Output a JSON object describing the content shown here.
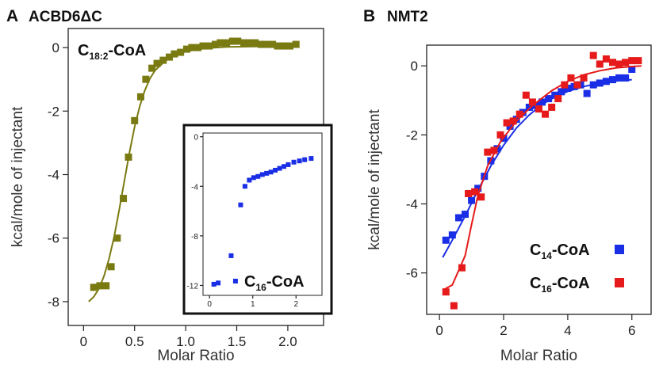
{
  "chart_data": [
    {
      "panel": "A",
      "title": "ACBD6ΔC",
      "type": "scatter",
      "xlabel": "Molar Ratio",
      "ylabel": "kcal/mole of injectant",
      "xlim": [
        -0.15,
        2.35
      ],
      "ylim": [
        -8.75,
        0.6
      ],
      "xticks": [
        0,
        0.5,
        1.0,
        1.5,
        2.0
      ],
      "xtick_labels": [
        "0",
        "0.5",
        "1.0",
        "1.5",
        "2.0"
      ],
      "yticks": [
        0,
        -2,
        -4,
        -6,
        -8
      ],
      "ytick_labels": [
        "0",
        "-2",
        "-4",
        "-6",
        "-8"
      ],
      "annotation": {
        "main": "C",
        "sub": "18:2",
        "rest": "-CoA"
      },
      "series": [
        {
          "color": "#7a7a12",
          "points": [
            [
              0.1,
              -7.55
            ],
            [
              0.16,
              -7.5
            ],
            [
              0.22,
              -7.5
            ],
            [
              0.27,
              -6.9
            ],
            [
              0.33,
              -6.0
            ],
            [
              0.39,
              -4.75
            ],
            [
              0.44,
              -3.45
            ],
            [
              0.5,
              -2.3
            ],
            [
              0.56,
              -1.55
            ],
            [
              0.61,
              -1.0
            ],
            [
              0.67,
              -0.65
            ],
            [
              0.72,
              -0.5
            ],
            [
              0.78,
              -0.4
            ],
            [
              0.84,
              -0.3
            ],
            [
              0.89,
              -0.2
            ],
            [
              0.95,
              -0.15
            ],
            [
              1.01,
              -0.05
            ],
            [
              1.06,
              0.0
            ],
            [
              1.12,
              0.0
            ],
            [
              1.17,
              0.05
            ],
            [
              1.23,
              0.05
            ],
            [
              1.29,
              0.1
            ],
            [
              1.34,
              0.15
            ],
            [
              1.4,
              0.15
            ],
            [
              1.46,
              0.2
            ],
            [
              1.51,
              0.2
            ],
            [
              1.57,
              0.15
            ],
            [
              1.62,
              0.15
            ],
            [
              1.68,
              0.15
            ],
            [
              1.74,
              0.1
            ],
            [
              1.79,
              0.1
            ],
            [
              1.85,
              0.1
            ],
            [
              1.9,
              0.05
            ],
            [
              1.96,
              0.05
            ],
            [
              2.02,
              0.05
            ],
            [
              2.08,
              0.1
            ]
          ],
          "fit": [
            [
              0.05,
              -8.0
            ],
            [
              0.1,
              -7.85
            ],
            [
              0.15,
              -7.6
            ],
            [
              0.2,
              -7.2
            ],
            [
              0.25,
              -6.65
            ],
            [
              0.3,
              -5.95
            ],
            [
              0.35,
              -5.1
            ],
            [
              0.4,
              -4.2
            ],
            [
              0.45,
              -3.3
            ],
            [
              0.5,
              -2.5
            ],
            [
              0.55,
              -1.85
            ],
            [
              0.6,
              -1.35
            ],
            [
              0.65,
              -0.98
            ],
            [
              0.7,
              -0.72
            ],
            [
              0.8,
              -0.42
            ],
            [
              0.9,
              -0.24
            ],
            [
              1.0,
              -0.12
            ],
            [
              1.2,
              -0.02
            ],
            [
              1.4,
              0.02
            ],
            [
              1.6,
              0.03
            ],
            [
              1.8,
              0.04
            ],
            [
              2.1,
              0.05
            ]
          ]
        }
      ],
      "inset": {
        "xlim": [
          -0.15,
          2.6
        ],
        "ylim": [
          -12.8,
          0.3
        ],
        "xticks": [
          0,
          1,
          2
        ],
        "xtick_labels": [
          "0",
          "1",
          "2"
        ],
        "yticks": [
          0,
          -4,
          -8,
          -12
        ],
        "ytick_labels": [
          "0",
          "-4",
          "-8",
          "-12"
        ],
        "annotation": {
          "main": "C",
          "sub": "16",
          "rest": "-CoA"
        },
        "color": "#1a2ee6",
        "points": [
          [
            0.1,
            -11.9
          ],
          [
            0.2,
            -11.8
          ],
          [
            0.5,
            -9.6
          ],
          [
            0.6,
            -11.65
          ],
          [
            0.72,
            -5.5
          ],
          [
            0.82,
            -4.0
          ],
          [
            0.92,
            -3.5
          ],
          [
            1.02,
            -3.3
          ],
          [
            1.12,
            -3.2
          ],
          [
            1.22,
            -3.05
          ],
          [
            1.32,
            -2.95
          ],
          [
            1.42,
            -2.85
          ],
          [
            1.52,
            -2.7
          ],
          [
            1.62,
            -2.55
          ],
          [
            1.72,
            -2.4
          ],
          [
            1.82,
            -2.25
          ],
          [
            1.95,
            -2.05
          ],
          [
            2.08,
            -1.95
          ],
          [
            2.2,
            -1.85
          ],
          [
            2.35,
            -1.75
          ]
        ]
      }
    },
    {
      "panel": "B",
      "title": "NMT2",
      "type": "scatter",
      "xlabel": "Molar Ratio",
      "ylabel": "kcal/mole of injectant",
      "xlim": [
        -0.4,
        6.6
      ],
      "ylim": [
        -7.2,
        0.6
      ],
      "xticks": [
        0,
        2,
        4,
        6
      ],
      "xtick_labels": [
        "0",
        "2",
        "4",
        "6"
      ],
      "yticks": [
        0,
        -2,
        -4,
        -6
      ],
      "ytick_labels": [
        "0",
        "-2",
        "-4",
        "-6"
      ],
      "series": [
        {
          "label": {
            "main": "C",
            "sub": "14",
            "rest": "-CoA"
          },
          "color": "#1a2ee6",
          "points": [
            [
              0.2,
              -5.05
            ],
            [
              0.4,
              -4.9
            ],
            [
              0.6,
              -4.4
            ],
            [
              0.8,
              -4.3
            ],
            [
              1.0,
              -3.9
            ],
            [
              1.2,
              -3.55
            ],
            [
              1.4,
              -3.2
            ],
            [
              1.6,
              -2.75
            ],
            [
              1.8,
              -2.4
            ],
            [
              2.0,
              -2.1
            ],
            [
              2.2,
              -1.75
            ],
            [
              2.4,
              -1.55
            ],
            [
              2.6,
              -1.35
            ],
            [
              2.8,
              -1.2
            ],
            [
              3.0,
              -1.15
            ],
            [
              3.2,
              -1.05
            ],
            [
              3.4,
              -0.95
            ],
            [
              3.6,
              -0.85
            ],
            [
              3.8,
              -0.75
            ],
            [
              4.0,
              -0.65
            ],
            [
              4.2,
              -0.6
            ],
            [
              4.4,
              -0.55
            ],
            [
              4.6,
              -0.8
            ],
            [
              4.8,
              -0.55
            ],
            [
              5.0,
              -0.5
            ],
            [
              5.2,
              -0.45
            ],
            [
              5.4,
              -0.4
            ],
            [
              5.6,
              -0.35
            ],
            [
              5.8,
              -0.35
            ],
            [
              6.0,
              -0.1
            ]
          ],
          "fit": [
            [
              0.1,
              -5.55
            ],
            [
              0.4,
              -5.05
            ],
            [
              0.8,
              -4.35
            ],
            [
              1.2,
              -3.6
            ],
            [
              1.6,
              -2.9
            ],
            [
              2.0,
              -2.3
            ],
            [
              2.4,
              -1.8
            ],
            [
              2.8,
              -1.42
            ],
            [
              3.2,
              -1.12
            ],
            [
              3.6,
              -0.9
            ],
            [
              4.0,
              -0.74
            ],
            [
              4.5,
              -0.6
            ],
            [
              5.0,
              -0.5
            ],
            [
              5.5,
              -0.44
            ],
            [
              6.0,
              -0.4
            ]
          ]
        },
        {
          "label": {
            "main": "C",
            "sub": "16",
            "rest": "-CoA"
          },
          "color": "#e61a1a",
          "points": [
            [
              0.2,
              -6.55
            ],
            [
              0.45,
              -6.95
            ],
            [
              0.7,
              -5.85
            ],
            [
              0.9,
              -3.7
            ],
            [
              1.1,
              -3.65
            ],
            [
              1.3,
              -3.8
            ],
            [
              1.5,
              -2.5
            ],
            [
              1.7,
              -2.45
            ],
            [
              1.9,
              -2.0
            ],
            [
              2.1,
              -1.65
            ],
            [
              2.3,
              -1.6
            ],
            [
              2.5,
              -1.4
            ],
            [
              2.7,
              -0.85
            ],
            [
              2.9,
              -1.05
            ],
            [
              3.1,
              -1.25
            ],
            [
              3.3,
              -1.4
            ],
            [
              3.5,
              -1.2
            ],
            [
              3.7,
              -0.95
            ],
            [
              3.9,
              -0.55
            ],
            [
              4.1,
              -0.35
            ],
            [
              4.3,
              -0.55
            ],
            [
              4.5,
              -0.35
            ],
            [
              4.8,
              0.3
            ],
            [
              5.0,
              0.05
            ],
            [
              5.2,
              0.2
            ],
            [
              5.4,
              0.1
            ],
            [
              5.6,
              0.05
            ],
            [
              5.8,
              0.1
            ],
            [
              6.0,
              0.15
            ],
            [
              6.2,
              0.15
            ]
          ],
          "fit": [
            [
              0.1,
              -6.5
            ],
            [
              0.4,
              -6.35
            ],
            [
              0.8,
              -5.5
            ],
            [
              1.0,
              -4.6
            ],
            [
              1.2,
              -3.75
            ],
            [
              1.5,
              -2.9
            ],
            [
              1.9,
              -2.2
            ],
            [
              2.4,
              -1.6
            ],
            [
              2.9,
              -1.15
            ],
            [
              3.5,
              -0.72
            ],
            [
              4.0,
              -0.45
            ],
            [
              4.5,
              -0.26
            ],
            [
              5.0,
              -0.14
            ],
            [
              5.5,
              -0.06
            ],
            [
              6.0,
              -0.02
            ],
            [
              6.3,
              0.0
            ]
          ]
        }
      ]
    }
  ]
}
